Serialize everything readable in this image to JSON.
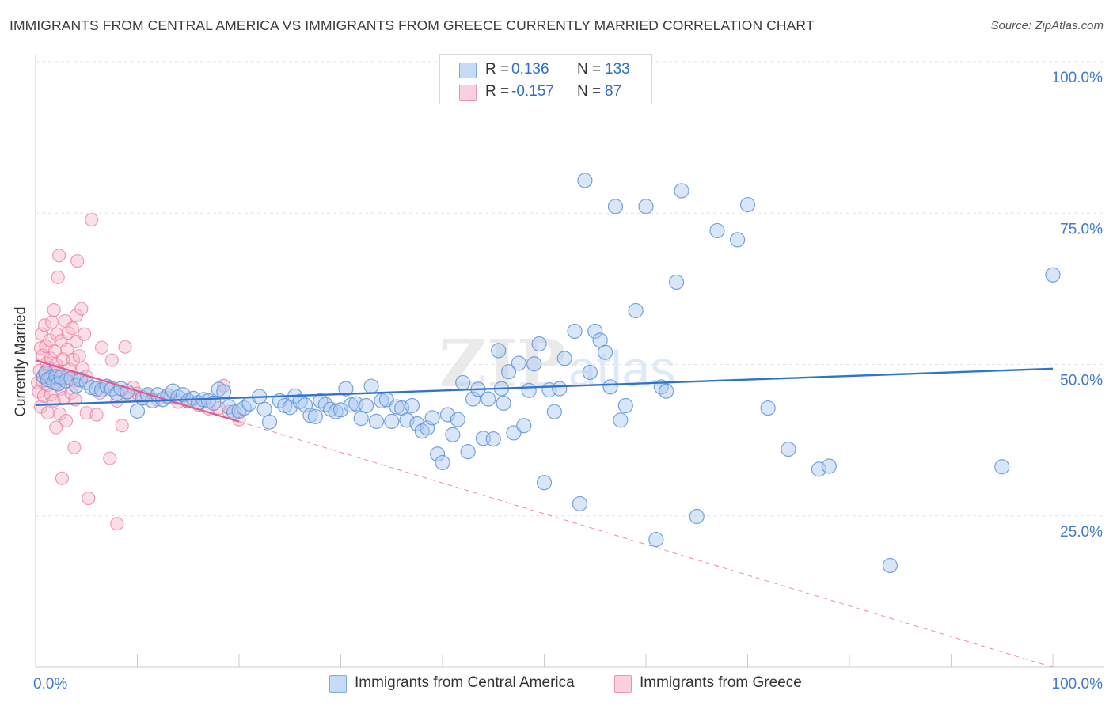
{
  "header": {
    "title": "IMMIGRANTS FROM CENTRAL AMERICA VS IMMIGRANTS FROM GREECE CURRENTLY MARRIED CORRELATION CHART",
    "source": "Source: ZipAtlas.com"
  },
  "watermark": {
    "part1": "ZIP",
    "part2": "atlas"
  },
  "legend_top": {
    "rows": [
      {
        "r_label": "R =",
        "r_value": "0.136",
        "n_label": "N =",
        "n_value": "133",
        "color": "#a9c8f0"
      },
      {
        "r_label": "R =",
        "r_value": "-0.157",
        "n_label": "N =",
        "n_value": "87",
        "color": "#f6b7c9"
      }
    ]
  },
  "legend_bottom": {
    "items": [
      {
        "label": "Immigrants from Central America",
        "color": "#a9c8f0"
      },
      {
        "label": "Immigrants from Greece",
        "color": "#f6b7c9"
      }
    ]
  },
  "axes": {
    "ylabel": "Currently Married",
    "x_ticks": [
      "0.0%",
      "100.0%"
    ],
    "y_ticks": [
      "25.0%",
      "50.0%",
      "75.0%",
      "100.0%"
    ]
  },
  "colors": {
    "blue_fill": "#a9c8f0",
    "blue_stroke": "#5f94d9",
    "blue_line": "#2f74d0",
    "pink_fill": "#f6b7c9",
    "pink_stroke": "#ec7ea0",
    "pink_line": "#e8588a",
    "tick_label": "#3f7bd0"
  },
  "chart_data": {
    "type": "scatter",
    "xlim": [
      0,
      100
    ],
    "ylim": [
      0,
      100
    ],
    "x_axis_format": "percent",
    "y_axis_format": "percent",
    "grid": "horizontal dashed",
    "legend_position": "top-center",
    "series": [
      {
        "name": "Immigrants from Central America",
        "color": "#a9c8f0",
        "R": 0.136,
        "N": 133,
        "trend": {
          "x": [
            0,
            100
          ],
          "y": [
            43.3,
            49.3
          ]
        },
        "points": [
          [
            0.8,
            48
          ],
          [
            1,
            48.6
          ],
          [
            1.2,
            47.5
          ],
          [
            1.5,
            47.8
          ],
          [
            1.8,
            47
          ],
          [
            2,
            48
          ],
          [
            2.2,
            46.8
          ],
          [
            2.5,
            47.9
          ],
          [
            3,
            47.3
          ],
          [
            3.5,
            47.7
          ],
          [
            4,
            46.5
          ],
          [
            4.4,
            47.5
          ],
          [
            5,
            47
          ],
          [
            5.5,
            46.2
          ],
          [
            6,
            46
          ],
          [
            6.5,
            45.8
          ],
          [
            7,
            46.4
          ],
          [
            7.5,
            46
          ],
          [
            8,
            45.2
          ],
          [
            8.4,
            46
          ],
          [
            9,
            45.5
          ],
          [
            10,
            42.3
          ],
          [
            10.5,
            44.5
          ],
          [
            11,
            45
          ],
          [
            11.5,
            44
          ],
          [
            12,
            45
          ],
          [
            12.5,
            44.2
          ],
          [
            13,
            44.8
          ],
          [
            13.5,
            45.6
          ],
          [
            14,
            44.6
          ],
          [
            14.5,
            45
          ],
          [
            15,
            44
          ],
          [
            15.5,
            44.4
          ],
          [
            16,
            43.7
          ],
          [
            16.5,
            44.2
          ],
          [
            17,
            44
          ],
          [
            17.5,
            43.6
          ],
          [
            18,
            45.9
          ],
          [
            18.5,
            45.5
          ],
          [
            19,
            43
          ],
          [
            19.5,
            42.1
          ],
          [
            20,
            42.3
          ],
          [
            20.5,
            42.8
          ],
          [
            21,
            43.5
          ],
          [
            22,
            44.7
          ],
          [
            22.5,
            42.6
          ],
          [
            23,
            40.5
          ],
          [
            24,
            44
          ],
          [
            24.5,
            43.2
          ],
          [
            25,
            42.9
          ],
          [
            25.5,
            44.8
          ],
          [
            26,
            43.9
          ],
          [
            26.5,
            43.3
          ],
          [
            27,
            41.6
          ],
          [
            27.5,
            41.4
          ],
          [
            28,
            44
          ],
          [
            28.5,
            43.4
          ],
          [
            29,
            42.6
          ],
          [
            29.5,
            42.2
          ],
          [
            30,
            42.5
          ],
          [
            30.5,
            46
          ],
          [
            31,
            43.3
          ],
          [
            31.5,
            43.5
          ],
          [
            32,
            41.1
          ],
          [
            32.5,
            43.2
          ],
          [
            33,
            46.4
          ],
          [
            33.5,
            40.6
          ],
          [
            34,
            44
          ],
          [
            34.5,
            44.2
          ],
          [
            35,
            40.6
          ],
          [
            35.5,
            43
          ],
          [
            36,
            42.8
          ],
          [
            36.5,
            40.8
          ],
          [
            37,
            43.2
          ],
          [
            37.5,
            40.2
          ],
          [
            38,
            39
          ],
          [
            38.5,
            39.5
          ],
          [
            39,
            41.2
          ],
          [
            39.5,
            35.2
          ],
          [
            40,
            33.8
          ],
          [
            40.5,
            41.7
          ],
          [
            41,
            38.4
          ],
          [
            41.5,
            40.9
          ],
          [
            42,
            47
          ],
          [
            42.5,
            35.6
          ],
          [
            43,
            44.3
          ],
          [
            43.5,
            45.9
          ],
          [
            44,
            37.8
          ],
          [
            44.5,
            44.3
          ],
          [
            45,
            37.7
          ],
          [
            45.5,
            52.3
          ],
          [
            45.8,
            46
          ],
          [
            46,
            43.6
          ],
          [
            46.5,
            48.8
          ],
          [
            47,
            38.7
          ],
          [
            47.5,
            50.2
          ],
          [
            48,
            39.9
          ],
          [
            48.5,
            45.7
          ],
          [
            49,
            50.1
          ],
          [
            49.5,
            53.4
          ],
          [
            50,
            30.5
          ],
          [
            50.5,
            45.8
          ],
          [
            51,
            42.2
          ],
          [
            51.5,
            46
          ],
          [
            52,
            51
          ],
          [
            53,
            55.5
          ],
          [
            53.5,
            27
          ],
          [
            54,
            80.4
          ],
          [
            54.5,
            48.7
          ],
          [
            55,
            55.5
          ],
          [
            55.5,
            54
          ],
          [
            56,
            52
          ],
          [
            56.5,
            46.3
          ],
          [
            57,
            76.1
          ],
          [
            57.5,
            40.8
          ],
          [
            58,
            43.2
          ],
          [
            59,
            58.9
          ],
          [
            60,
            76.1
          ],
          [
            61,
            21.1
          ],
          [
            61.5,
            46.3
          ],
          [
            62,
            45.6
          ],
          [
            63,
            63.6
          ],
          [
            63.5,
            78.7
          ],
          [
            65,
            24.9
          ],
          [
            67,
            72.1
          ],
          [
            69,
            70.6
          ],
          [
            70,
            76.4
          ],
          [
            72,
            42.8
          ],
          [
            74,
            36
          ],
          [
            77,
            32.7
          ],
          [
            78,
            33.2
          ],
          [
            84,
            16.8
          ],
          [
            95,
            33.1
          ],
          [
            100,
            64.8
          ]
        ]
      },
      {
        "name": "Immigrants from Greece",
        "color": "#f6b7c9",
        "R": -0.157,
        "N": 87,
        "trend": {
          "x": [
            0,
            100
          ],
          "y": [
            50.7,
            0
          ]
        },
        "trend_solid_until_x": 20,
        "points": [
          [
            0.2,
            47
          ],
          [
            0.3,
            45.5
          ],
          [
            0.4,
            49
          ],
          [
            0.5,
            52.7
          ],
          [
            0.5,
            43
          ],
          [
            0.6,
            55
          ],
          [
            0.7,
            47.2
          ],
          [
            0.7,
            51.5
          ],
          [
            0.8,
            44.8
          ],
          [
            0.9,
            56.5
          ],
          [
            1,
            48.5
          ],
          [
            1,
            53
          ],
          [
            1.1,
            50.2
          ],
          [
            1.2,
            46.6
          ],
          [
            1.2,
            42
          ],
          [
            1.3,
            49.4
          ],
          [
            1.4,
            54
          ],
          [
            1.5,
            51
          ],
          [
            1.5,
            45
          ],
          [
            1.6,
            57
          ],
          [
            1.7,
            48.1
          ],
          [
            1.8,
            59
          ],
          [
            1.8,
            44
          ],
          [
            1.9,
            52.2
          ],
          [
            2,
            50
          ],
          [
            2,
            46.8
          ],
          [
            2,
            39.6
          ],
          [
            2.1,
            55
          ],
          [
            2.2,
            48.9
          ],
          [
            2.2,
            64.4
          ],
          [
            2.3,
            68
          ],
          [
            2.4,
            41.8
          ],
          [
            2.5,
            53.9
          ],
          [
            2.5,
            46
          ],
          [
            2.6,
            31.2
          ],
          [
            2.7,
            50.9
          ],
          [
            2.8,
            44.5
          ],
          [
            2.9,
            57.2
          ],
          [
            3,
            48.2
          ],
          [
            3,
            40.7
          ],
          [
            3.1,
            52.5
          ],
          [
            3.2,
            55.2
          ],
          [
            3.3,
            49.2
          ],
          [
            3.4,
            47.7
          ],
          [
            3.5,
            45.3
          ],
          [
            3.6,
            56
          ],
          [
            3.7,
            50.8
          ],
          [
            3.8,
            36.3
          ],
          [
            3.9,
            44.2
          ],
          [
            4,
            53.8
          ],
          [
            4,
            58.1
          ],
          [
            4.1,
            67.1
          ],
          [
            4.2,
            47.3
          ],
          [
            4.3,
            51.4
          ],
          [
            4.5,
            59.2
          ],
          [
            4.6,
            49.4
          ],
          [
            4.8,
            55
          ],
          [
            5,
            48
          ],
          [
            5,
            42
          ],
          [
            5.2,
            27.9
          ],
          [
            5.5,
            73.9
          ],
          [
            6,
            41.7
          ],
          [
            6.3,
            45.3
          ],
          [
            6.5,
            52.8
          ],
          [
            7,
            46.4
          ],
          [
            7.3,
            34.5
          ],
          [
            7.5,
            50.7
          ],
          [
            8,
            44
          ],
          [
            8,
            23.7
          ],
          [
            8.5,
            39.9
          ],
          [
            8.8,
            52.9
          ],
          [
            9,
            45.3
          ],
          [
            9.3,
            44.8
          ],
          [
            9.6,
            46.2
          ],
          [
            10,
            45.2
          ],
          [
            10.5,
            44.3
          ],
          [
            11,
            44.9
          ],
          [
            12,
            44.2
          ],
          [
            13,
            44.5
          ],
          [
            14,
            43.8
          ],
          [
            15,
            43.9
          ],
          [
            16,
            43.3
          ],
          [
            17,
            42.7
          ],
          [
            18,
            42.8
          ],
          [
            18.5,
            46.5
          ],
          [
            19,
            42.2
          ],
          [
            20,
            40.9
          ]
        ]
      }
    ]
  }
}
